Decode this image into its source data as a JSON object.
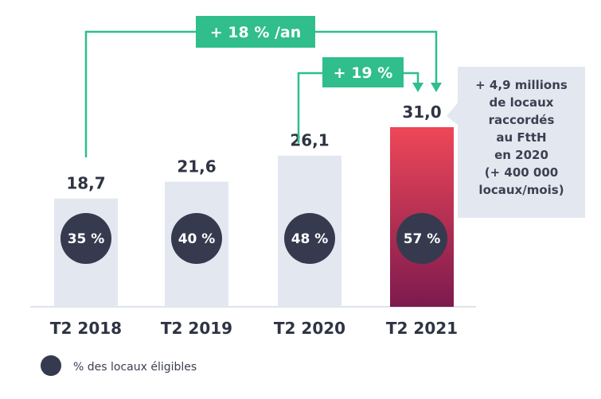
{
  "chart_data": {
    "type": "bar",
    "categories": [
      "T2 2018",
      "T2 2019",
      "T2 2020",
      "T2 2021"
    ],
    "values": [
      18.7,
      21.6,
      26.1,
      31.0
    ],
    "value_labels": [
      "18,7",
      "21,6",
      "26,1",
      "31,0"
    ],
    "eligible_share_labels": [
      "35 %",
      "40 %",
      "48 %",
      "57 %"
    ],
    "ylim": [
      0,
      31.0
    ],
    "grid": false,
    "growth_annotations": {
      "annual": "+ 18 % /an",
      "last_year": "+ 19 %"
    },
    "callout_lines": [
      "+ 4,9 millions",
      "de locaux",
      "raccordés",
      "au FttH",
      "en 2020",
      "(+ 400 000",
      "locaux/mois)"
    ],
    "legend_label": "% des locaux éligibles"
  },
  "colors": {
    "bar": "#e3e8f0",
    "bar_highlight_top": "#ee4758",
    "bar_highlight_bottom": "#7d1a4e",
    "circle": "#353a4e",
    "growth_box": "#2fbe8c",
    "callout_bg": "#e3e8f0",
    "text": "#2f3444"
  }
}
